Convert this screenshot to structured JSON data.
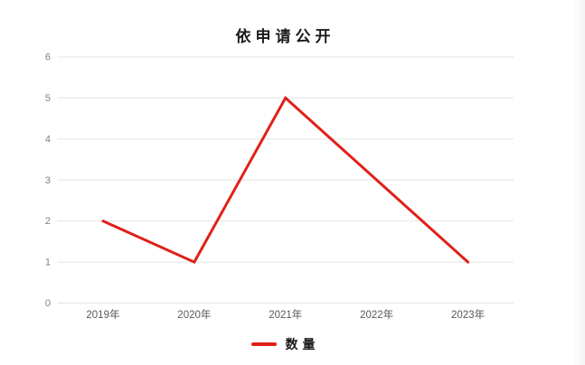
{
  "chart_data": {
    "type": "line",
    "title": "依申请公开",
    "categories": [
      "2019年",
      "2020年",
      "2021年",
      "2022年",
      "2023年"
    ],
    "series": [
      {
        "name": "数量",
        "values": [
          2,
          1,
          5,
          3,
          1
        ],
        "color": "#e02019"
      }
    ],
    "xlabel": "",
    "ylabel": "",
    "ylim": [
      0,
      6
    ],
    "yticks": [
      0,
      1,
      2,
      3,
      4,
      5,
      6
    ],
    "grid": true,
    "legend_position": "bottom"
  },
  "colors": {
    "grid": "#e4e4e4",
    "y_tick_text": "#7f7f7f",
    "x_tick_text": "#595959",
    "title_text": "#1a1a1a",
    "line": "#e02019",
    "background": "#ffffff"
  }
}
